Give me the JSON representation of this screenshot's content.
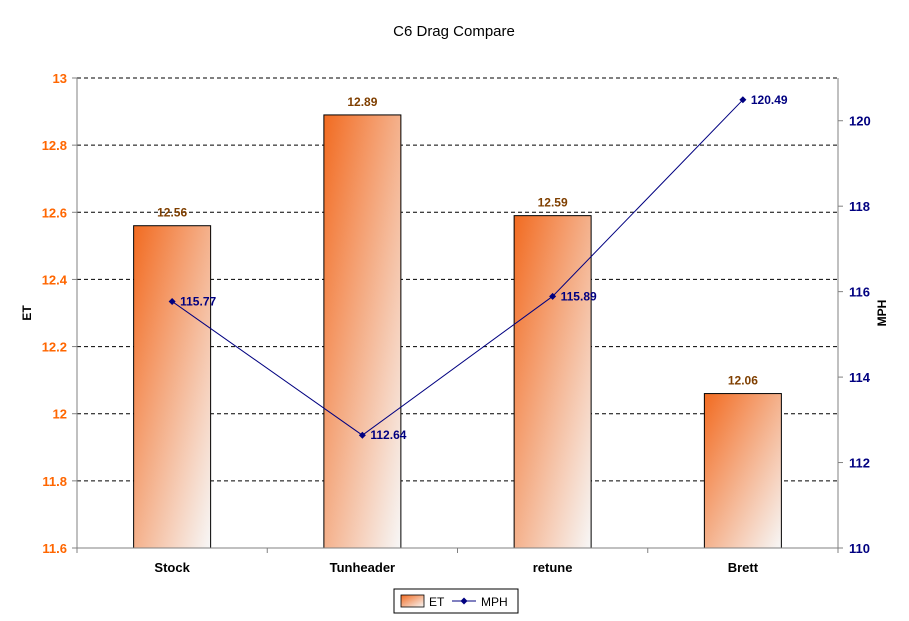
{
  "chart_data": {
    "type": "bar",
    "title": "C6 Drag Compare",
    "categories": [
      "Stock",
      "Tunheader",
      "retune",
      "Brett"
    ],
    "series": [
      {
        "name": "ET",
        "type": "bar",
        "axis": "left",
        "values": [
          12.56,
          12.89,
          12.59,
          12.06
        ],
        "data_labels": [
          "12.56",
          "12.89",
          "12.59",
          "12.06"
        ]
      },
      {
        "name": "MPH",
        "type": "line",
        "axis": "right",
        "values": [
          115.77,
          112.64,
          115.89,
          120.49
        ],
        "data_labels": [
          "115.77",
          "112.64",
          "115.89",
          "120.49"
        ]
      }
    ],
    "y_left": {
      "label": "ET",
      "lim": [
        11.6,
        13
      ],
      "ticks": [
        "11.6",
        "11.8",
        "12",
        "12.2",
        "12.4",
        "12.6",
        "12.8",
        "13"
      ]
    },
    "y_right": {
      "label": "MPH",
      "lim": [
        110,
        121
      ],
      "ticks": [
        "110",
        "112",
        "114",
        "116",
        "118",
        "120"
      ]
    },
    "grid": "horizontal dashed",
    "legend_position": "bottom",
    "colors": {
      "bar_gradient_start": "#f26b21",
      "bar_gradient_end": "#f7f7f7",
      "bar_label": "#7f3f00",
      "left_axis": "#ff6600",
      "line": "#000080",
      "grid": "#000000"
    }
  }
}
